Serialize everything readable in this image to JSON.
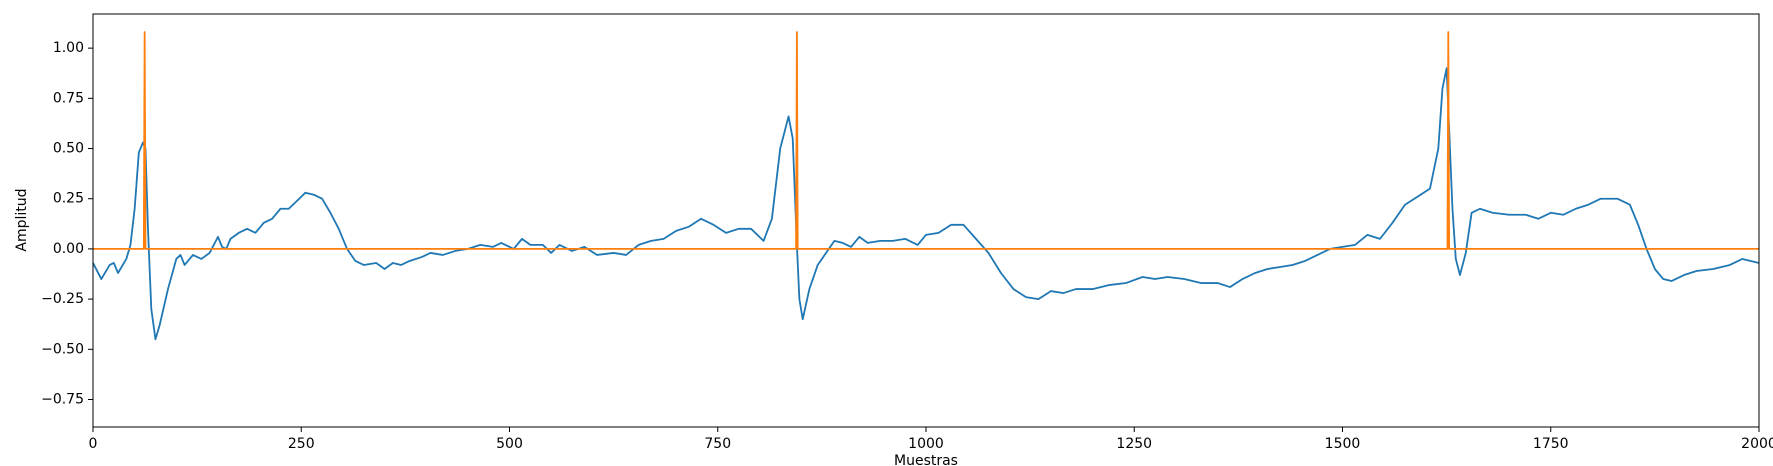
{
  "chart_data": {
    "type": "line",
    "x_label": "Muestras",
    "y_label": "Amplitud",
    "xlim": [
      0,
      2000
    ],
    "ylim": [
      -0.887,
      1.17
    ],
    "xticks": [
      0,
      250,
      500,
      750,
      1000,
      1250,
      1500,
      1750,
      2000
    ],
    "yticks": [
      {
        "value": -0.75,
        "label": "−0.75"
      },
      {
        "value": -0.5,
        "label": "−0.50"
      },
      {
        "value": -0.25,
        "label": "−0.25"
      },
      {
        "value": 0,
        "label": "0.00"
      },
      0.25,
      {
        "value": 0.5,
        "label": "0.50"
      },
      0.75,
      {
        "value": 1,
        "label": "1.00"
      }
    ],
    "grid": false,
    "series": [
      {
        "color": "#1f77b4",
        "x": [
          0,
          10,
          20,
          25,
          30,
          40,
          45,
          50,
          55,
          60,
          63,
          66,
          70,
          75,
          80,
          90,
          100,
          105,
          110,
          120,
          130,
          140,
          150,
          155,
          160,
          165,
          175,
          185,
          195,
          205,
          215,
          225,
          235,
          245,
          255,
          265,
          275,
          285,
          295,
          305,
          315,
          325,
          340,
          350,
          360,
          370,
          380,
          395,
          405,
          420,
          435,
          450,
          465,
          480,
          490,
          505,
          515,
          525,
          540,
          550,
          560,
          575,
          590,
          605,
          625,
          640,
          655,
          670,
          685,
          700,
          715,
          730,
          745,
          760,
          775,
          790,
          805,
          815,
          825,
          835,
          840,
          845,
          848,
          852,
          860,
          870,
          880,
          890,
          900,
          910,
          920,
          930,
          945,
          960,
          975,
          990,
          1000,
          1015,
          1030,
          1045,
          1060,
          1075,
          1090,
          1105,
          1120,
          1135,
          1150,
          1165,
          1180,
          1200,
          1220,
          1240,
          1260,
          1275,
          1290,
          1310,
          1330,
          1350,
          1365,
          1380,
          1395,
          1410,
          1425,
          1440,
          1455,
          1470,
          1485,
          1500,
          1515,
          1530,
          1545,
          1560,
          1575,
          1590,
          1605,
          1615,
          1620,
          1625,
          1628,
          1632,
          1636,
          1641,
          1648,
          1655,
          1665,
          1680,
          1700,
          1720,
          1735,
          1750,
          1765,
          1780,
          1795,
          1810,
          1830,
          1845,
          1855,
          1865,
          1875,
          1885,
          1895,
          1910,
          1925,
          1945,
          1965,
          1980,
          2000
        ],
        "values": [
          -0.07,
          -0.15,
          -0.08,
          -0.07,
          -0.12,
          -0.05,
          0.02,
          0.2,
          0.48,
          0.53,
          0.5,
          0.1,
          -0.3,
          -0.45,
          -0.38,
          -0.2,
          -0.05,
          -0.03,
          -0.08,
          -0.03,
          -0.05,
          -0.02,
          0.06,
          0.01,
          0.0,
          0.05,
          0.08,
          0.1,
          0.08,
          0.13,
          0.15,
          0.2,
          0.2,
          0.24,
          0.28,
          0.27,
          0.25,
          0.18,
          0.1,
          0.0,
          -0.06,
          -0.08,
          -0.07,
          -0.1,
          -0.07,
          -0.08,
          -0.06,
          -0.04,
          -0.02,
          -0.03,
          -0.01,
          0.0,
          0.02,
          0.01,
          0.03,
          0.0,
          0.05,
          0.02,
          0.02,
          -0.02,
          0.02,
          -0.01,
          0.01,
          -0.03,
          -0.02,
          -0.03,
          0.02,
          0.04,
          0.05,
          0.09,
          0.11,
          0.15,
          0.12,
          0.08,
          0.1,
          0.1,
          0.04,
          0.15,
          0.5,
          0.66,
          0.55,
          0.02,
          -0.25,
          -0.35,
          -0.2,
          -0.08,
          -0.02,
          0.04,
          0.03,
          0.01,
          0.06,
          0.03,
          0.04,
          0.04,
          0.05,
          0.02,
          0.07,
          0.08,
          0.12,
          0.12,
          0.05,
          -0.02,
          -0.12,
          -0.2,
          -0.24,
          -0.25,
          -0.21,
          -0.22,
          -0.2,
          -0.2,
          -0.18,
          -0.17,
          -0.14,
          -0.15,
          -0.14,
          -0.15,
          -0.17,
          -0.17,
          -0.19,
          -0.15,
          -0.12,
          -0.1,
          -0.09,
          -0.08,
          -0.06,
          -0.03,
          0.0,
          0.01,
          0.02,
          0.07,
          0.05,
          0.13,
          0.22,
          0.26,
          0.3,
          0.5,
          0.8,
          0.9,
          0.6,
          0.2,
          -0.05,
          -0.13,
          -0.02,
          0.18,
          0.2,
          0.18,
          0.17,
          0.17,
          0.15,
          0.18,
          0.17,
          0.2,
          0.22,
          0.25,
          0.25,
          0.22,
          0.12,
          0.0,
          -0.1,
          -0.15,
          -0.16,
          -0.13,
          -0.11,
          -0.1,
          -0.08,
          -0.05,
          -0.07
        ]
      },
      {
        "color": "#ff7f0e",
        "x": [
          0,
          61,
          62,
          63,
          844,
          845,
          846,
          1626,
          1627,
          1628,
          2000
        ],
        "values": [
          0,
          0,
          1.08,
          0,
          0,
          1.08,
          0,
          0,
          1.08,
          0,
          0
        ]
      }
    ]
  }
}
